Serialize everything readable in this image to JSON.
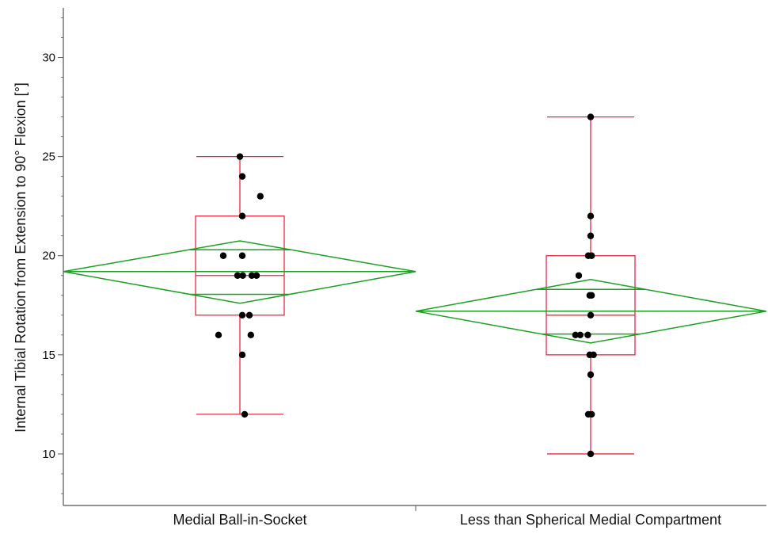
{
  "chart_data": {
    "type": "box",
    "title": "",
    "xlabel": "",
    "ylabel": "Internal Tibial Rotation from Extension to 90° Flexion [°]",
    "ylim": [
      7.4,
      32.5
    ],
    "yticks": [
      10,
      15,
      20,
      25,
      30
    ],
    "categories": [
      "Medial Ball-in-Socket",
      "Less than Spherical Medial Compartment"
    ],
    "groups": [
      {
        "name": "Medial Ball-in-Socket",
        "points": [
          {
            "jitter": 0.0,
            "y": 25
          },
          {
            "jitter": 0.05,
            "y": 24
          },
          {
            "jitter": 0.43,
            "y": 23
          },
          {
            "jitter": 0.05,
            "y": 22
          },
          {
            "jitter": -0.35,
            "y": 20
          },
          {
            "jitter": 0.05,
            "y": 20
          },
          {
            "jitter": -0.05,
            "y": 19
          },
          {
            "jitter": 0.06,
            "y": 19
          },
          {
            "jitter": 0.25,
            "y": 19
          },
          {
            "jitter": 0.35,
            "y": 19
          },
          {
            "jitter": 0.05,
            "y": 17
          },
          {
            "jitter": 0.2,
            "y": 17
          },
          {
            "jitter": -0.45,
            "y": 16
          },
          {
            "jitter": 0.23,
            "y": 16
          },
          {
            "jitter": 0.05,
            "y": 15
          },
          {
            "jitter": 0.1,
            "y": 12
          }
        ],
        "box": {
          "min": 12,
          "q1": 17,
          "median": 19,
          "q3": 22,
          "max": 25
        },
        "mean": 19.2,
        "ci": [
          17.6,
          20.75
        ],
        "overlap": [
          18.05,
          20.3
        ]
      },
      {
        "name": "Less than Spherical Medial Compartment",
        "points": [
          {
            "jitter": 0.0,
            "y": 27
          },
          {
            "jitter": 0.0,
            "y": 22
          },
          {
            "jitter": 0.0,
            "y": 21
          },
          {
            "jitter": -0.05,
            "y": 20
          },
          {
            "jitter": 0.02,
            "y": 20
          },
          {
            "jitter": -0.25,
            "y": 19
          },
          {
            "jitter": -0.02,
            "y": 18
          },
          {
            "jitter": 0.02,
            "y": 18
          },
          {
            "jitter": 0.0,
            "y": 17
          },
          {
            "jitter": -0.32,
            "y": 16
          },
          {
            "jitter": -0.22,
            "y": 16
          },
          {
            "jitter": -0.06,
            "y": 16
          },
          {
            "jitter": -0.02,
            "y": 15
          },
          {
            "jitter": 0.06,
            "y": 15
          },
          {
            "jitter": 0.0,
            "y": 14
          },
          {
            "jitter": -0.05,
            "y": 12
          },
          {
            "jitter": 0.02,
            "y": 12
          },
          {
            "jitter": 0.0,
            "y": 10
          }
        ],
        "box": {
          "min": 10,
          "q1": 15,
          "median": 17,
          "q3": 20,
          "max": 27
        },
        "mean": 17.2,
        "ci": [
          15.6,
          18.8
        ],
        "overlap": [
          16.05,
          18.3
        ]
      }
    ],
    "colors": {
      "box": "#e8283f",
      "diamond": "#1aa11f",
      "point": "#000000",
      "axis": "#555555"
    }
  }
}
